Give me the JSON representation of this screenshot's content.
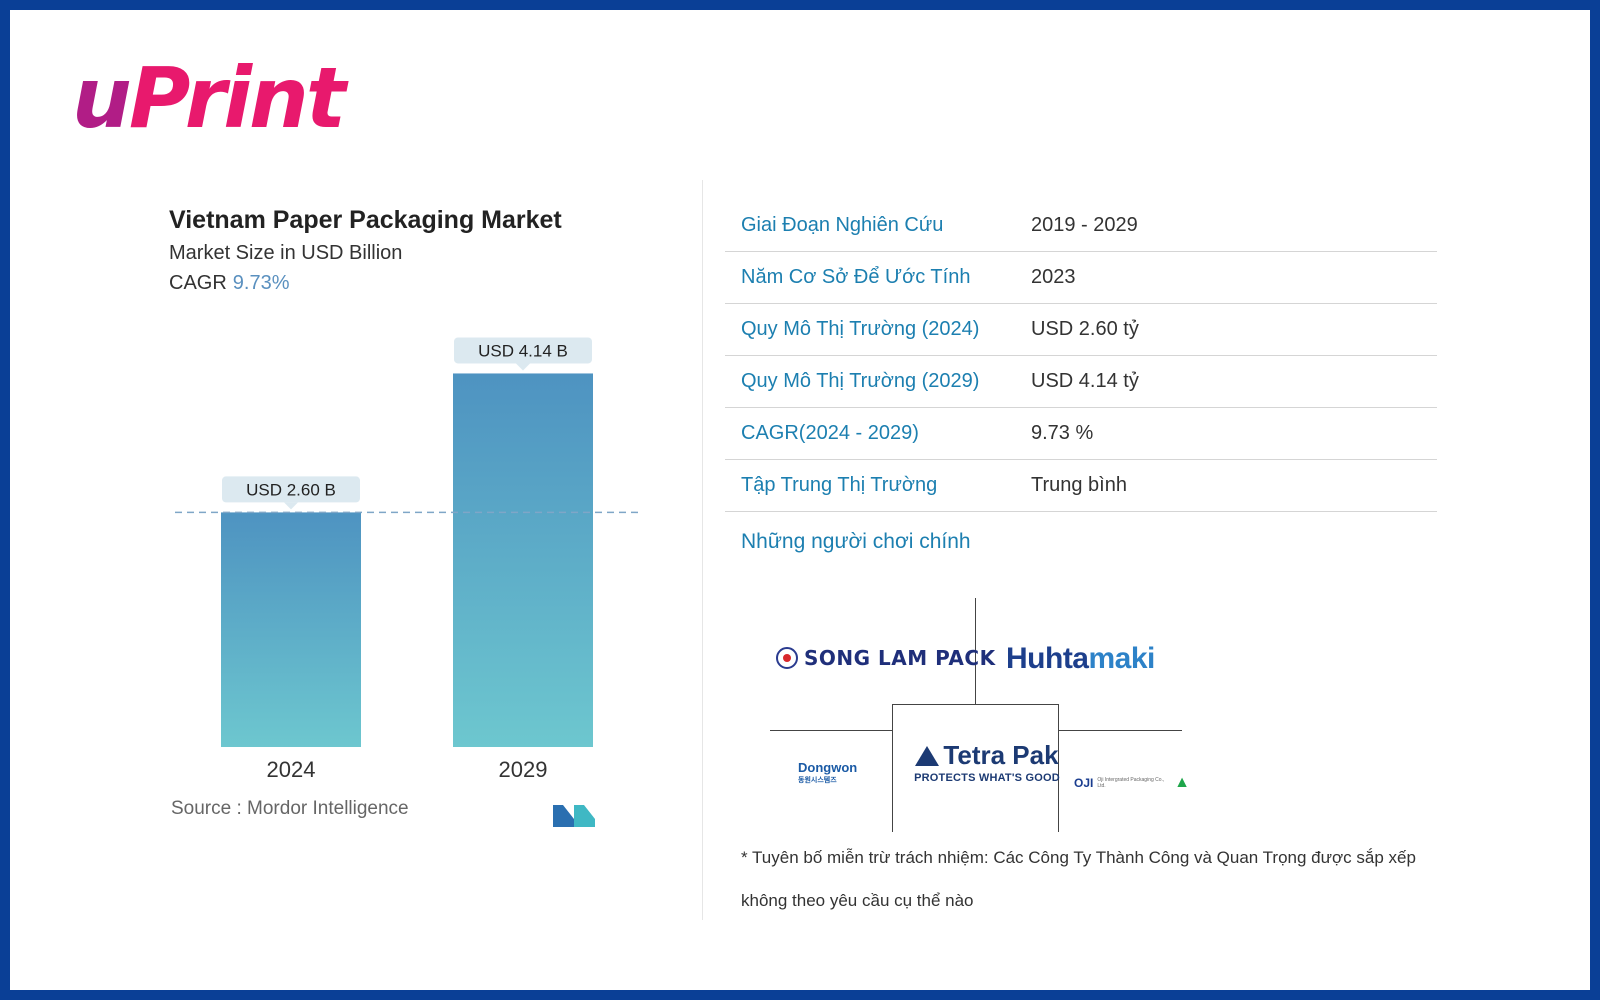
{
  "brand": {
    "logo_u": "u",
    "logo_rest": "Print"
  },
  "chart_data": {
    "type": "bar",
    "title": "Vietnam Paper Packaging Market",
    "subtitle": "Market Size in USD Billion",
    "cagr_label": "CAGR",
    "cagr_value": "9.73%",
    "categories": [
      "2024",
      "2029"
    ],
    "values": [
      2.6,
      4.14
    ],
    "data_labels": [
      "USD 2.60 B",
      "USD 4.14 B"
    ],
    "ylim": [
      0,
      4.4
    ],
    "reference_line": 2.6,
    "grid": false,
    "colors": {
      "bar_top": "#4e93c1",
      "bar_bottom": "#6dc7cf",
      "label_bg": "#dce9f0",
      "ref_line": "#7fa6c7"
    }
  },
  "source": "Source :  Mordor Intelligence",
  "info_table": [
    {
      "label": "Giai Đoạn Nghiên Cứu",
      "value": "2019 - 2029"
    },
    {
      "label": "Năm Cơ Sở Để Ước Tính",
      "value": "2023"
    },
    {
      "label": "Quy Mô Thị Trường (2024)",
      "value": "USD 2.60 tỷ"
    },
    {
      "label": "Quy Mô Thị Trường (2029)",
      "value": "USD 4.14 tỷ"
    },
    {
      "label": "CAGR(2024 - 2029)",
      "value": "9.73 %"
    },
    {
      "label": "Tập Trung Thị Trường",
      "value": "Trung bình"
    }
  ],
  "players_title": "Những người chơi chính",
  "players": {
    "songlam": "SONG LAM PACK",
    "huhtamaki_a": "Huhta",
    "huhtamaki_b": "maki",
    "tetrapak": "Tetra Pak",
    "tetrapak_tag": "PROTECTS WHAT'S GOOD",
    "dongwon": "Dongwon",
    "dongwon_sub": "동원시스템즈",
    "oji": "OJI",
    "oji_sub": "Oji Intergrated Packaging Co., Ltd."
  },
  "disclaimer": "* Tuyên bố miễn trừ trách nhiệm: Các Công Ty Thành Công và Quan Trọng được sắp xếp không theo yêu cầu cụ thể nào"
}
